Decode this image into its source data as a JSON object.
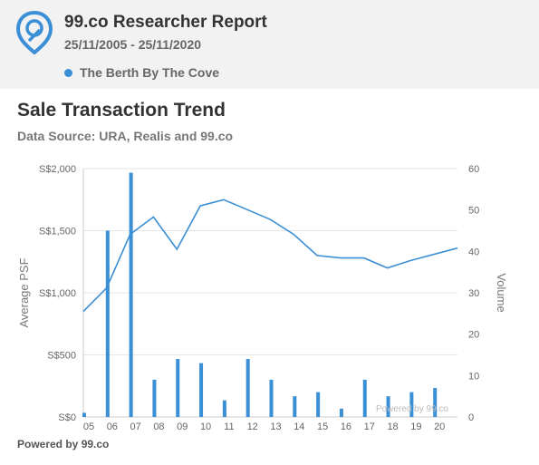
{
  "header": {
    "title": "99.co Researcher Report",
    "date_range": "25/11/2005 - 25/11/2020",
    "legend_label": "The Berth By The Cove",
    "accent_color": "#3a8fd6"
  },
  "footer": {
    "text": "Powered by 99.co"
  },
  "chart_data": {
    "type": "bar+line",
    "title": "Sale Transaction Trend",
    "subtitle": "Data Source: URA, Realis and 99.co",
    "ylabel_left": "Average PSF",
    "ylabel_right": "Volume",
    "watermark": "Powered by 99.co",
    "categories": [
      "05",
      "06",
      "07",
      "08",
      "09",
      "10",
      "11",
      "12",
      "13",
      "14",
      "15",
      "16",
      "17",
      "18",
      "19",
      "20"
    ],
    "y_left": {
      "ticks": [
        "S$0",
        "S$500",
        "S$1,000",
        "S$1,500",
        "S$2,000"
      ],
      "range": [
        0,
        2000
      ]
    },
    "y_right": {
      "ticks": [
        "0",
        "10",
        "20",
        "30",
        "40",
        "50",
        "60"
      ],
      "range": [
        0,
        60
      ]
    },
    "series": [
      {
        "kind": "bar",
        "axis": "right",
        "values": [
          1,
          45,
          59,
          9,
          14,
          13,
          4,
          14,
          9,
          5,
          6,
          2,
          9,
          5,
          6,
          7
        ],
        "color": "#3a8fd6"
      },
      {
        "kind": "line",
        "axis": "left",
        "values": [
          850,
          1040,
          1470,
          1610,
          1350,
          1700,
          1750,
          1670,
          1590,
          1470,
          1300,
          1280,
          1280,
          1200,
          1260,
          1360
        ],
        "color": "#3a8fd6"
      }
    ],
    "grid": true
  }
}
